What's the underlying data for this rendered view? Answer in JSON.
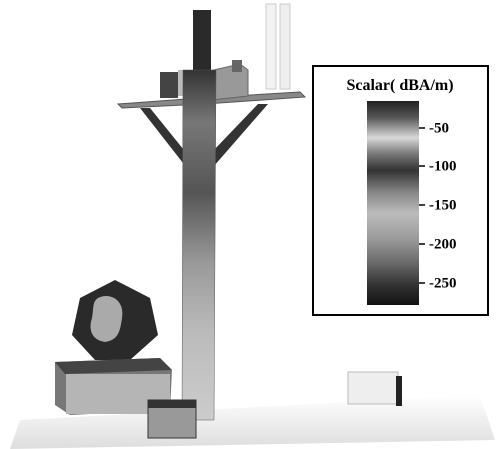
{
  "legend": {
    "title": "Scalar( dBA/m)",
    "ticks": [
      "-50",
      "-100",
      "-150",
      "-200",
      "-250"
    ]
  }
}
